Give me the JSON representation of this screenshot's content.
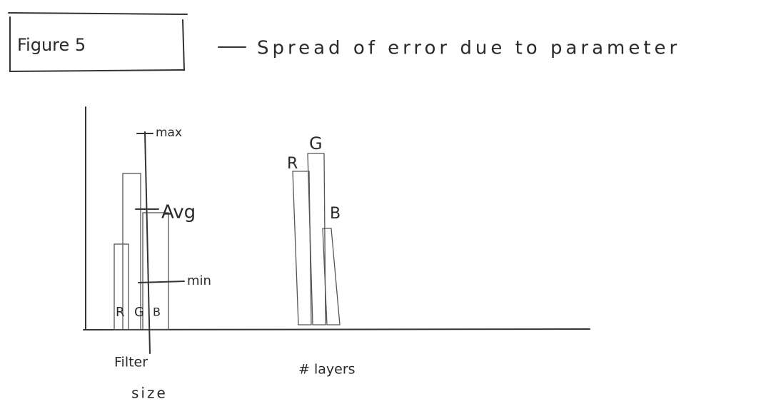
{
  "header": {
    "figure": "Figure 5",
    "title": "Spread of error due to parameter"
  },
  "legend": {
    "max": "max",
    "avg": "Avg",
    "min": "min"
  },
  "groups": [
    {
      "label_lines": [
        "Filter",
        "size"
      ],
      "bars": [
        "R",
        "G",
        "B"
      ]
    },
    {
      "label_lines": [
        "# layers"
      ],
      "bars": [
        "R",
        "G",
        "B"
      ]
    }
  ]
}
